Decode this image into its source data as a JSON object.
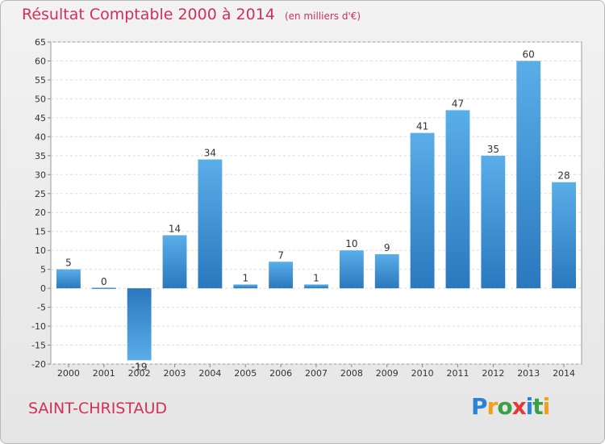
{
  "header": {
    "title": "Résultat Comptable 2000 à 2014",
    "subtitle": "(en milliers d'€)"
  },
  "footer": {
    "commune": "SAINT-CHRISTAUD",
    "logo_text": "Proxiti"
  },
  "chart_data": {
    "type": "bar",
    "title": "Résultat Comptable 2000 à 2014",
    "subtitle": "(en milliers d'€)",
    "categories": [
      "2000",
      "2001",
      "2002",
      "2003",
      "2004",
      "2005",
      "2006",
      "2007",
      "2008",
      "2009",
      "2010",
      "2011",
      "2012",
      "2013",
      "2014"
    ],
    "values": [
      5,
      0,
      -19,
      14,
      34,
      1,
      7,
      1,
      10,
      9,
      41,
      47,
      35,
      60,
      28
    ],
    "xlabel": "",
    "ylabel": "",
    "ylim": [
      -20,
      65
    ],
    "yticks": [
      -20,
      -15,
      -10,
      -5,
      0,
      5,
      10,
      15,
      20,
      25,
      30,
      35,
      40,
      45,
      50,
      55,
      60,
      65
    ],
    "grid": true,
    "bar_color": "#3a8fd6"
  }
}
